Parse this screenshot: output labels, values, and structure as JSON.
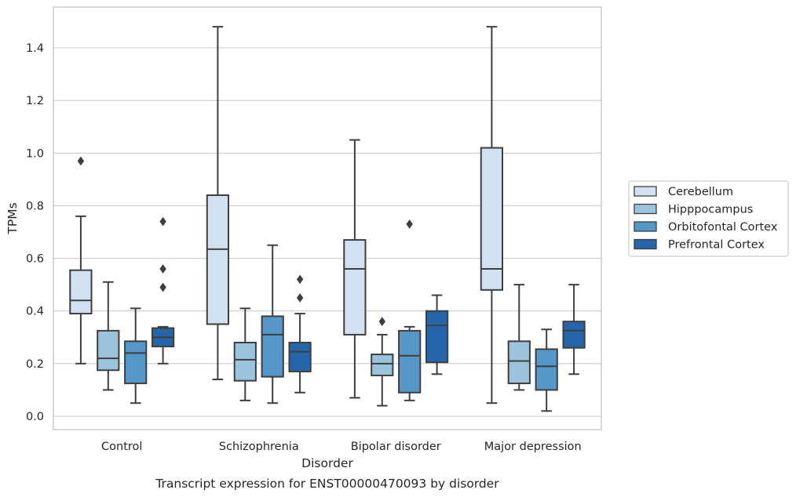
{
  "chart_data": {
    "type": "boxplot",
    "title": "Transcript expression for ENST00000470093 by disorder",
    "xlabel": "Disorder",
    "ylabel": "TPMs",
    "ylim": [
      -0.05,
      1.55
    ],
    "yticks": [
      "0.0",
      "0.2",
      "0.4",
      "0.6",
      "0.8",
      "1.0",
      "1.2",
      "1.4"
    ],
    "grid": true,
    "legend_position": "right",
    "categories": [
      "Control",
      "Schizophrenia",
      "Bipolar disorder",
      "Major depression"
    ],
    "series": [
      {
        "name": "Cerebellum",
        "color": "#d1e1f2",
        "boxes": [
          {
            "whislo": 0.2,
            "q1": 0.39,
            "med": 0.44,
            "q3": 0.555,
            "whishi": 0.76,
            "fliers": [
              0.97
            ]
          },
          {
            "whislo": 0.14,
            "q1": 0.35,
            "med": 0.635,
            "q3": 0.84,
            "whishi": 1.48,
            "fliers": []
          },
          {
            "whislo": 0.07,
            "q1": 0.31,
            "med": 0.56,
            "q3": 0.67,
            "whishi": 1.05,
            "fliers": []
          },
          {
            "whislo": 0.05,
            "q1": 0.48,
            "med": 0.56,
            "q3": 1.02,
            "whishi": 1.48,
            "fliers": []
          }
        ]
      },
      {
        "name": "Hipppocampus",
        "color": "#9ac3dc",
        "boxes": [
          {
            "whislo": 0.1,
            "q1": 0.175,
            "med": 0.22,
            "q3": 0.325,
            "whishi": 0.51,
            "fliers": []
          },
          {
            "whislo": 0.06,
            "q1": 0.135,
            "med": 0.215,
            "q3": 0.28,
            "whishi": 0.41,
            "fliers": []
          },
          {
            "whislo": 0.04,
            "q1": 0.155,
            "med": 0.2,
            "q3": 0.235,
            "whishi": 0.31,
            "fliers": [
              0.36
            ]
          },
          {
            "whislo": 0.1,
            "q1": 0.125,
            "med": 0.21,
            "q3": 0.285,
            "whishi": 0.5,
            "fliers": []
          }
        ]
      },
      {
        "name": "Orbitofontal Cortex",
        "color": "#5497c8",
        "boxes": [
          {
            "whislo": 0.05,
            "q1": 0.125,
            "med": 0.24,
            "q3": 0.285,
            "whishi": 0.41,
            "fliers": []
          },
          {
            "whislo": 0.05,
            "q1": 0.15,
            "med": 0.31,
            "q3": 0.38,
            "whishi": 0.65,
            "fliers": []
          },
          {
            "whislo": 0.06,
            "q1": 0.09,
            "med": 0.23,
            "q3": 0.325,
            "whishi": 0.34,
            "fliers": [
              0.73
            ]
          },
          {
            "whislo": 0.02,
            "q1": 0.1,
            "med": 0.19,
            "q3": 0.255,
            "whishi": 0.33,
            "fliers": []
          }
        ]
      },
      {
        "name": "Prefrontal Cortex",
        "color": "#2565a9",
        "boxes": [
          {
            "whislo": 0.2,
            "q1": 0.265,
            "med": 0.3,
            "q3": 0.335,
            "whishi": 0.34,
            "fliers": [
              0.49,
              0.56,
              0.74
            ]
          },
          {
            "whislo": 0.09,
            "q1": 0.17,
            "med": 0.245,
            "q3": 0.28,
            "whishi": 0.39,
            "fliers": [
              0.45,
              0.52
            ]
          },
          {
            "whislo": 0.16,
            "q1": 0.205,
            "med": 0.345,
            "q3": 0.4,
            "whishi": 0.46,
            "fliers": []
          },
          {
            "whislo": 0.16,
            "q1": 0.26,
            "med": 0.325,
            "q3": 0.36,
            "whishi": 0.5,
            "fliers": []
          }
        ]
      }
    ]
  }
}
